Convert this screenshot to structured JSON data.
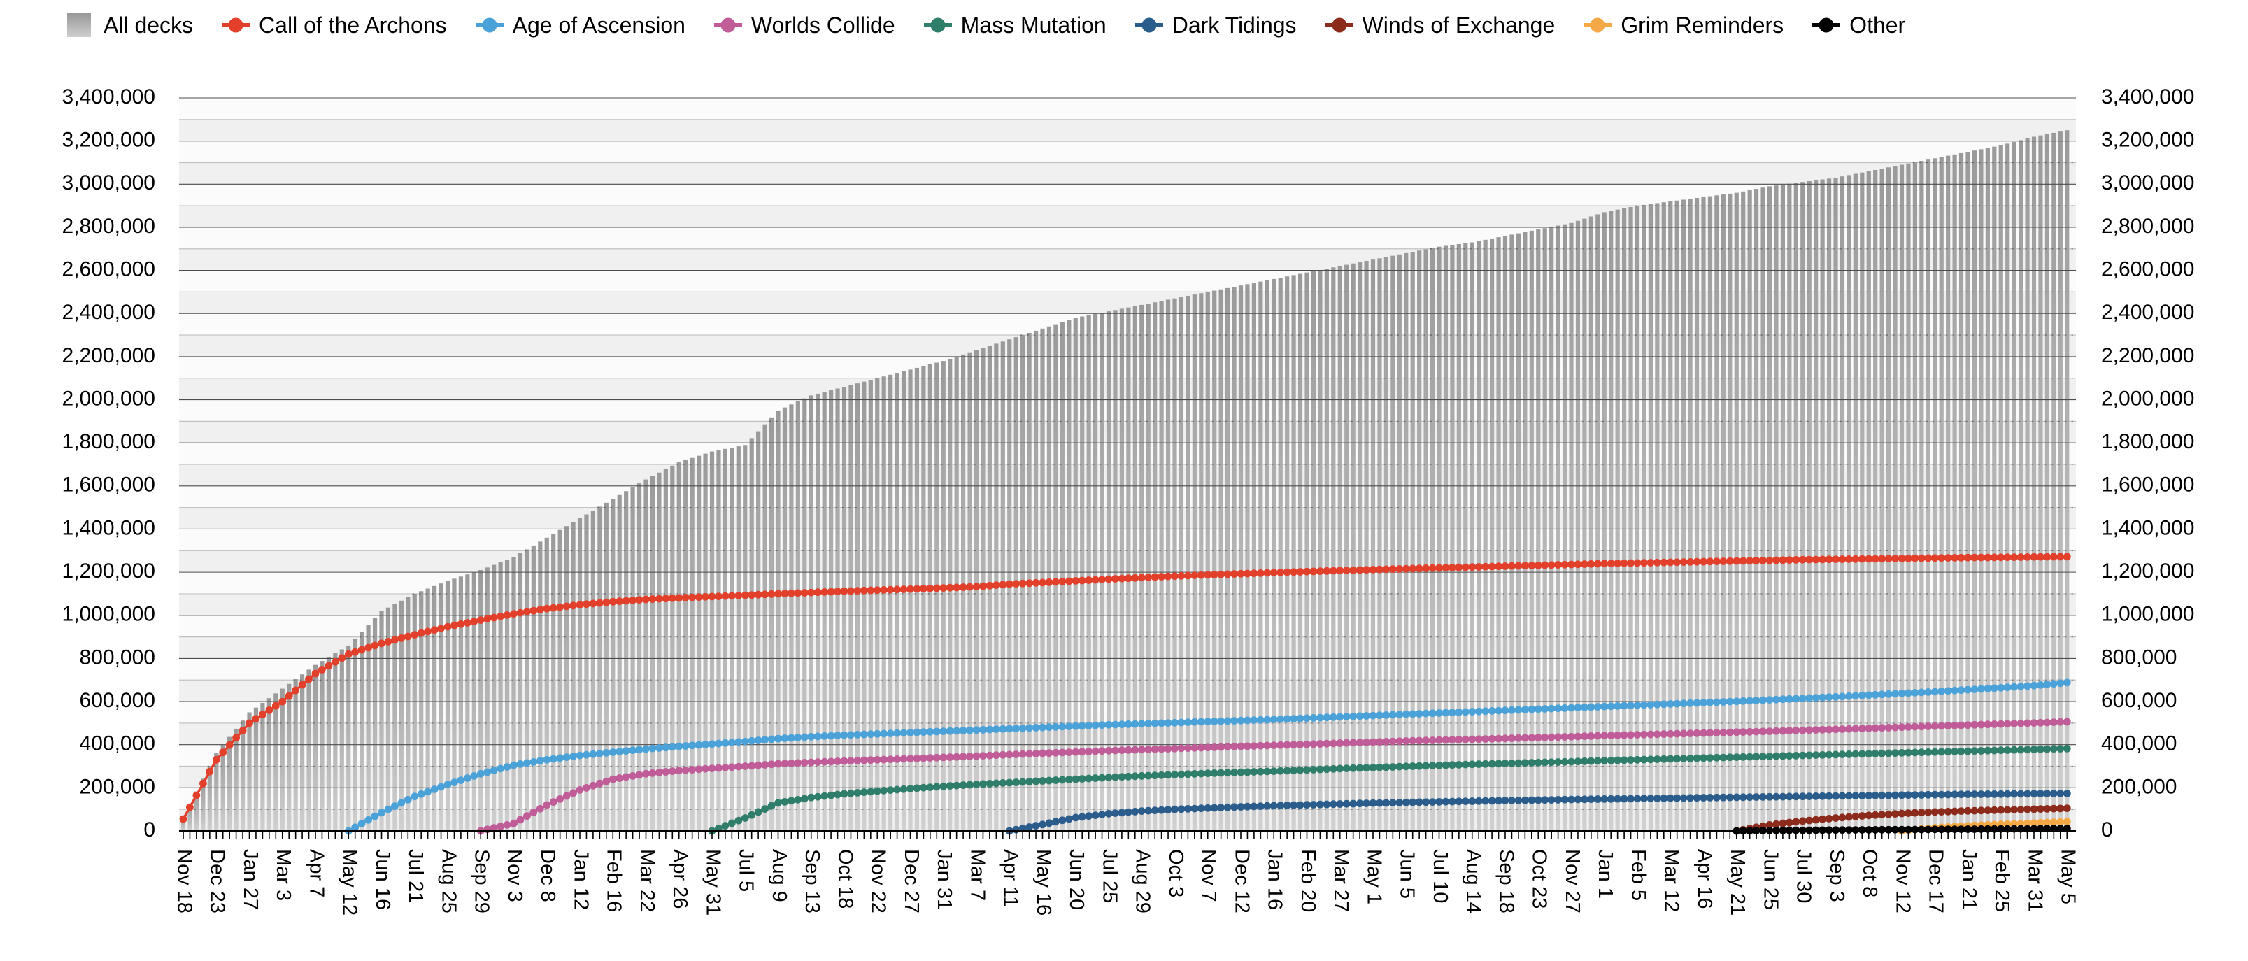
{
  "legend": [
    {
      "label": "All decks",
      "color": "#b0b0b0",
      "marker": "square"
    },
    {
      "label": "Call of the Archons",
      "color": "#e3402b",
      "marker": "line-dot"
    },
    {
      "label": "Age of Ascension",
      "color": "#4aa2d8",
      "marker": "line-dot"
    },
    {
      "label": "Worlds Collide",
      "color": "#c05c98",
      "marker": "line-dot"
    },
    {
      "label": "Mass Mutation",
      "color": "#2f7e6c",
      "marker": "line-dot"
    },
    {
      "label": "Dark Tidings",
      "color": "#2b5d8c",
      "marker": "line-dot"
    },
    {
      "label": "Winds of Exchange",
      "color": "#8c2a1b",
      "marker": "line-dot"
    },
    {
      "label": "Grim Reminders",
      "color": "#f4a946",
      "marker": "line-dot"
    },
    {
      "label": "Other",
      "color": "#000000",
      "marker": "line-dot"
    }
  ],
  "y_axis": {
    "labels": [
      "0",
      "200,000",
      "400,000",
      "600,000",
      "800,000",
      "1,000,000",
      "1,200,000",
      "1,400,000",
      "1,600,000",
      "1,800,000",
      "2,000,000",
      "2,200,000",
      "2,400,000",
      "2,600,000",
      "2,800,000",
      "3,000,000",
      "3,200,000",
      "3,400,000"
    ],
    "max": 3400000,
    "major_step": 200000,
    "minor_step": 100000,
    "shown_on": "both-sides"
  },
  "chart_data": {
    "type": "combo",
    "note": "Cumulative registered KeyForge decks over time; weekly bars (All decks) with line+dot series per set; values are read at each labeled tick (5-week spacing), weekly points are interpolated",
    "y_max": 3400000,
    "points_per_interval": 5,
    "grid": true,
    "legend_position": "top-left",
    "categories": [
      "Nov 18",
      "Dec 23",
      "Jan 27",
      "Mar 3",
      "Apr 7",
      "May 12",
      "Jun 16",
      "Jul 21",
      "Aug 25",
      "Sep 29",
      "Nov 3",
      "Dec 8",
      "Jan 12",
      "Feb 16",
      "Mar 22",
      "Apr 26",
      "May 31",
      "Jul 5",
      "Aug 9",
      "Sep 13",
      "Oct 18",
      "Nov 22",
      "Dec 27",
      "Jan 31",
      "Mar 7",
      "Apr 11",
      "May 16",
      "Jun 20",
      "Jul 25",
      "Aug 29",
      "Oct 3",
      "Nov 7",
      "Dec 12",
      "Jan 16",
      "Feb 20",
      "Mar 27",
      "May 1",
      "Jun 5",
      "Jul 10",
      "Aug 14",
      "Sep 18",
      "Oct 23",
      "Nov 27",
      "Jan 1",
      "Feb 5",
      "Mar 12",
      "Apr 16",
      "May 21",
      "Jun 25",
      "Jul 30",
      "Sep 3",
      "Oct 8",
      "Nov 12",
      "Dec 17",
      "Jan 21",
      "Feb 25",
      "Mar 31",
      "May 5"
    ],
    "series": [
      {
        "name": "All decks",
        "type": "bar",
        "color": "#b0b0b0",
        "values": [
          65000,
          360000,
          550000,
          660000,
          770000,
          860000,
          1020000,
          1100000,
          1160000,
          1210000,
          1270000,
          1360000,
          1450000,
          1540000,
          1630000,
          1710000,
          1760000,
          1790000,
          1950000,
          2020000,
          2060000,
          2100000,
          2140000,
          2180000,
          2230000,
          2280000,
          2330000,
          2380000,
          2410000,
          2440000,
          2470000,
          2500000,
          2530000,
          2560000,
          2590000,
          2620000,
          2650000,
          2680000,
          2710000,
          2730000,
          2760000,
          2790000,
          2820000,
          2870000,
          2900000,
          2920000,
          2940000,
          2960000,
          2990000,
          3010000,
          3030000,
          3060000,
          3090000,
          3120000,
          3150000,
          3180000,
          3220000,
          3250000
        ]
      },
      {
        "name": "Call of the Archons",
        "type": "line",
        "color": "#e3402b",
        "values": [
          55000,
          330000,
          500000,
          600000,
          730000,
          820000,
          870000,
          910000,
          947000,
          978000,
          1007000,
          1031000,
          1049000,
          1063000,
          1074000,
          1081000,
          1087000,
          1093000,
          1100000,
          1106000,
          1112000,
          1117000,
          1122000,
          1127000,
          1133000,
          1145000,
          1152000,
          1160000,
          1168000,
          1175000,
          1182000,
          1188000,
          1193000,
          1198000,
          1203000,
          1208000,
          1212000,
          1216000,
          1220000,
          1224000,
          1228000,
          1232000,
          1236000,
          1240000,
          1243000,
          1246000,
          1249000,
          1252000,
          1255000,
          1258000,
          1260000,
          1262000,
          1264000,
          1266000,
          1268000,
          1269000,
          1271000,
          1272000
        ]
      },
      {
        "name": "Age of Ascension",
        "type": "line",
        "color": "#4aa2d8",
        "values": [
          null,
          null,
          null,
          null,
          null,
          0,
          85000,
          160000,
          215000,
          265000,
          305000,
          330000,
          350000,
          365000,
          380000,
          392000,
          403000,
          415000,
          428000,
          437000,
          444000,
          450000,
          456000,
          462000,
          468000,
          474000,
          480000,
          486000,
          492000,
          497000,
          502000,
          507000,
          512000,
          517000,
          523000,
          529000,
          535000,
          541000,
          547000,
          553000,
          559000,
          565000,
          571000,
          577000,
          583000,
          589000,
          595000,
          601000,
          608000,
          615000,
          622000,
          630000,
          638000,
          646000,
          655000,
          664000,
          674000,
          688000
        ]
      },
      {
        "name": "Worlds Collide",
        "type": "line",
        "color": "#c05c98",
        "values": [
          null,
          null,
          null,
          null,
          null,
          null,
          null,
          null,
          null,
          0,
          35000,
          120000,
          190000,
          240000,
          265000,
          280000,
          290000,
          300000,
          311000,
          318000,
          324000,
          330000,
          335000,
          341000,
          347000,
          354000,
          360000,
          366000,
          372000,
          377000,
          382000,
          387000,
          392000,
          397000,
          402000,
          407000,
          412000,
          417000,
          421000,
          425000,
          429000,
          433000,
          437000,
          442000,
          446000,
          450000,
          454000,
          458000,
          462000,
          467000,
          471000,
          476000,
          481000,
          486000,
          491000,
          496000,
          501000,
          506000
        ]
      },
      {
        "name": "Mass Mutation",
        "type": "line",
        "color": "#2f7e6c",
        "values": [
          null,
          null,
          null,
          null,
          null,
          null,
          null,
          null,
          null,
          null,
          null,
          null,
          null,
          null,
          null,
          null,
          0,
          60000,
          130000,
          155000,
          172000,
          185000,
          196000,
          207000,
          216000,
          224000,
          232000,
          240000,
          248000,
          255000,
          261000,
          267000,
          272000,
          277000,
          283000,
          289000,
          294000,
          299000,
          304000,
          309000,
          313000,
          317000,
          321000,
          326000,
          330000,
          334000,
          338000,
          342000,
          346000,
          350000,
          354000,
          358000,
          362000,
          366000,
          370000,
          374000,
          378000,
          382000
        ]
      },
      {
        "name": "Dark Tidings",
        "type": "line",
        "color": "#2b5d8c",
        "values": [
          null,
          null,
          null,
          null,
          null,
          null,
          null,
          null,
          null,
          null,
          null,
          null,
          null,
          null,
          null,
          null,
          null,
          null,
          null,
          null,
          null,
          null,
          null,
          null,
          null,
          0,
          30000,
          62000,
          80000,
          92000,
          100000,
          106000,
          112000,
          117000,
          121000,
          125000,
          129000,
          132000,
          135000,
          138000,
          141000,
          143000,
          146000,
          148000,
          150000,
          152000,
          154000,
          156000,
          158000,
          160000,
          162000,
          164000,
          166000,
          168000,
          170000,
          171000,
          173000,
          174000
        ]
      },
      {
        "name": "Winds of Exchange",
        "type": "line",
        "color": "#8c2a1b",
        "values": [
          null,
          null,
          null,
          null,
          null,
          null,
          null,
          null,
          null,
          null,
          null,
          null,
          null,
          null,
          null,
          null,
          null,
          null,
          null,
          null,
          null,
          null,
          null,
          null,
          null,
          null,
          null,
          null,
          null,
          null,
          null,
          null,
          null,
          null,
          null,
          null,
          null,
          null,
          null,
          null,
          null,
          null,
          null,
          null,
          null,
          null,
          null,
          0,
          28000,
          46000,
          60000,
          72000,
          81000,
          88000,
          93000,
          97000,
          101000,
          105000
        ]
      },
      {
        "name": "Grim Reminders",
        "type": "line",
        "color": "#f4a946",
        "values": [
          null,
          null,
          null,
          null,
          null,
          null,
          null,
          null,
          null,
          null,
          null,
          null,
          null,
          null,
          null,
          null,
          null,
          null,
          null,
          null,
          null,
          null,
          null,
          null,
          null,
          null,
          null,
          null,
          null,
          null,
          null,
          null,
          null,
          null,
          null,
          null,
          null,
          null,
          null,
          null,
          null,
          null,
          null,
          null,
          null,
          null,
          null,
          null,
          null,
          null,
          null,
          null,
          0,
          15000,
          24000,
          31000,
          37000,
          43000
        ]
      },
      {
        "name": "Other",
        "type": "line",
        "color": "#000000",
        "values": [
          null,
          null,
          null,
          null,
          null,
          null,
          null,
          null,
          null,
          null,
          null,
          null,
          null,
          null,
          null,
          null,
          null,
          null,
          null,
          null,
          null,
          null,
          null,
          null,
          null,
          null,
          null,
          null,
          null,
          null,
          null,
          null,
          null,
          null,
          null,
          null,
          null,
          null,
          null,
          null,
          null,
          null,
          null,
          null,
          null,
          null,
          null,
          0,
          2000,
          3000,
          4000,
          5000,
          6000,
          7000,
          8000,
          9000,
          10000,
          12000
        ]
      }
    ]
  },
  "colors": {
    "bar_top": "#9a9a9a",
    "bar_bottom": "#d0d0d0",
    "grid_major": "#4d4d4d",
    "grid_minor_bg": "#c2c2c2",
    "grid_minor_over_bars": "rgba(30,30,30,0.45)",
    "band_dark": "#f0f0f0",
    "band_light": "#fbfbfb",
    "axis": "#000000"
  }
}
